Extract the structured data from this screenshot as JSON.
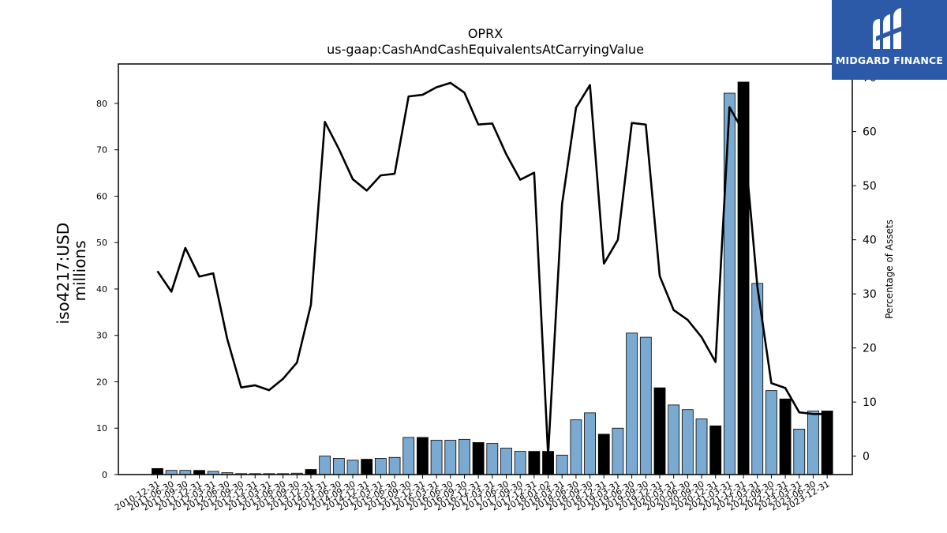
{
  "chart_data": {
    "type": "bar",
    "title": "OPRX",
    "subtitle": "us-gaap:CashAndCashEquivalentsAtCarryingValue",
    "ylabel": "iso4217:USD\nmillions",
    "ylabel_lines": [
      "iso4217:USD",
      "millions"
    ],
    "y2label": "Percentage of Assets",
    "ylim": [
      0,
      88.5
    ],
    "y2lim": [
      -3.4,
      72.5
    ],
    "yticks": [
      0,
      10,
      20,
      30,
      40,
      50,
      60,
      70,
      80
    ],
    "y2ticks": [
      0,
      10,
      20,
      30,
      40,
      50,
      60,
      70
    ],
    "grid": false,
    "categories": [
      "2010-12-31",
      "2011-06-30",
      "2011-09-30",
      "2011-12-31",
      "2012-03-31",
      "2012-06-30",
      "2012-09-30",
      "2012-12-31",
      "2013-03-31",
      "2013-06-30",
      "2013-09-30",
      "2013-12-31",
      "2014-03-31",
      "2014-06-30",
      "2014-09-30",
      "2014-12-31",
      "2015-03-31",
      "2015-06-30",
      "2015-09-30",
      "2015-12-31",
      "2016-03-31",
      "2016-06-30",
      "2016-09-30",
      "2016-12-31",
      "2017-03-31",
      "2017-06-30",
      "2017-09-30",
      "2017-12-31",
      "2018-01-02",
      "2018-03-31",
      "2018-06-30",
      "2018-09-30",
      "2018-12-31",
      "2019-03-31",
      "2019-06-30",
      "2019-09-30",
      "2019-12-31",
      "2020-03-31",
      "2020-06-30",
      "2020-09-30",
      "2020-12-31",
      "2021-03-31",
      "2021-12-31",
      "2022-03-31",
      "2022-09-30",
      "2022-12-31",
      "2023-03-31",
      "2023-06-30",
      "2023-12-31"
    ],
    "series": [
      {
        "type": "bar",
        "values": [
          1.3,
          0.9,
          0.9,
          0.9,
          0.7,
          0.4,
          0.2,
          0.2,
          0.2,
          0.2,
          0.3,
          1.1,
          4.0,
          3.5,
          3.1,
          3.3,
          3.5,
          3.7,
          8.0,
          8.0,
          7.4,
          7.4,
          7.6,
          6.9,
          6.7,
          5.7,
          5.0,
          5.0,
          5.0,
          4.2,
          11.8,
          13.3,
          8.7,
          10.0,
          30.5,
          29.6,
          18.7,
          15.0,
          14.0,
          12.0,
          10.5,
          82.2,
          84.6,
          41.2,
          18.1,
          16.3,
          9.8,
          13.7,
          13.7
        ],
        "colors": [
          "#000000",
          "#7aa9d1",
          "#7aa9d1",
          "#000000",
          "#7aa9d1",
          "#7aa9d1",
          "#7aa9d1",
          "#7aa9d1",
          "#7aa9d1",
          "#7aa9d1",
          "#7aa9d1",
          "#000000",
          "#7aa9d1",
          "#7aa9d1",
          "#7aa9d1",
          "#000000",
          "#7aa9d1",
          "#7aa9d1",
          "#7aa9d1",
          "#000000",
          "#7aa9d1",
          "#7aa9d1",
          "#7aa9d1",
          "#000000",
          "#7aa9d1",
          "#7aa9d1",
          "#7aa9d1",
          "#000000",
          "#000000",
          "#7aa9d1",
          "#7aa9d1",
          "#7aa9d1",
          "#000000",
          "#7aa9d1",
          "#7aa9d1",
          "#7aa9d1",
          "#000000",
          "#7aa9d1",
          "#7aa9d1",
          "#7aa9d1",
          "#000000",
          "#7aa9d1",
          "#000000",
          "#7aa9d1",
          "#7aa9d1",
          "#000000",
          "#7aa9d1",
          "#7aa9d1",
          "#000000"
        ]
      },
      {
        "type": "line",
        "axis": "right",
        "color": "#000000",
        "values": [
          34.2,
          30.4,
          38.5,
          33.2,
          33.8,
          21.7,
          12.7,
          13.1,
          12.2,
          14.3,
          17.3,
          28.0,
          61.8,
          56.8,
          51.2,
          49.1,
          51.9,
          52.2,
          66.5,
          66.8,
          68.2,
          69.0,
          67.2,
          61.3,
          61.5,
          55.8,
          51.1,
          52.4,
          0.2,
          46.6,
          64.4,
          68.6,
          35.6,
          40.0,
          61.6,
          61.3,
          33.3,
          27.0,
          25.2,
          22.0,
          17.4,
          64.5,
          60.0,
          31.3,
          13.5,
          12.6,
          8.1,
          7.8,
          7.8
        ]
      }
    ]
  },
  "brand": {
    "name": "MIDGARD FINANCE",
    "color": "#2d5aa8",
    "icon": "midgard-logo-icon"
  }
}
